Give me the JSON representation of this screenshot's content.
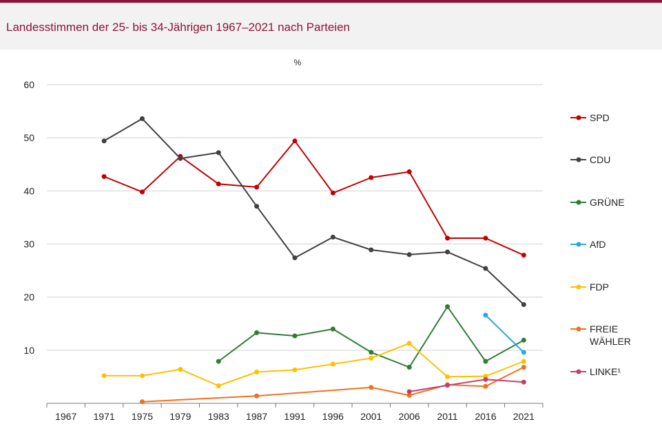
{
  "header": {
    "title": "Landesstimmen der 25- bis 34-Jährigen 1967–2021 nach Parteien"
  },
  "chart_data": {
    "type": "line",
    "title": "Landesstimmen der 25- bis 34-Jährigen 1967–2021 nach Parteien",
    "ylabel": "%",
    "xlabel": "",
    "ylim": [
      0,
      60
    ],
    "yticks": [
      10,
      20,
      30,
      40,
      50,
      60
    ],
    "grid": true,
    "legend_position": "right",
    "categories": [
      "1967",
      "1971",
      "1975",
      "1979",
      "1983",
      "1987",
      "1991",
      "1996",
      "2001",
      "2006",
      "2011",
      "2016",
      "2021"
    ],
    "series": [
      {
        "name": "SPD",
        "color": "#c00000",
        "values": [
          null,
          42.7,
          39.8,
          46.5,
          41.3,
          40.7,
          49.4,
          39.6,
          42.5,
          43.6,
          31.1,
          31.1,
          27.9
        ]
      },
      {
        "name": "CDU",
        "color": "#404040",
        "values": [
          null,
          49.4,
          53.6,
          46.1,
          47.2,
          37.1,
          27.4,
          31.3,
          28.9,
          28.0,
          28.5,
          25.4,
          18.6
        ]
      },
      {
        "name": "GRÜNE",
        "color": "#2e7d32",
        "values": [
          null,
          null,
          null,
          null,
          7.9,
          13.3,
          12.7,
          14.0,
          9.6,
          6.8,
          18.2,
          7.9,
          11.9
        ]
      },
      {
        "name": "AfD",
        "color": "#29a8e0",
        "values": [
          null,
          null,
          null,
          null,
          null,
          null,
          null,
          null,
          null,
          null,
          null,
          16.6,
          9.6
        ]
      },
      {
        "name": "FDP",
        "color": "#ffc000",
        "values": [
          null,
          5.2,
          5.2,
          6.4,
          3.3,
          5.9,
          6.3,
          7.4,
          8.5,
          11.3,
          5.0,
          5.1,
          7.9
        ]
      },
      {
        "name": "FREIE WÄHLER",
        "color": "#f07020",
        "values": [
          null,
          null,
          0.3,
          null,
          null,
          1.4,
          null,
          null,
          3.0,
          1.5,
          3.5,
          3.2,
          6.8
        ]
      },
      {
        "name": "LINKE¹",
        "color": "#c0406a",
        "values": [
          null,
          null,
          null,
          null,
          null,
          null,
          null,
          null,
          null,
          2.2,
          3.4,
          4.5,
          4.0
        ]
      }
    ]
  }
}
